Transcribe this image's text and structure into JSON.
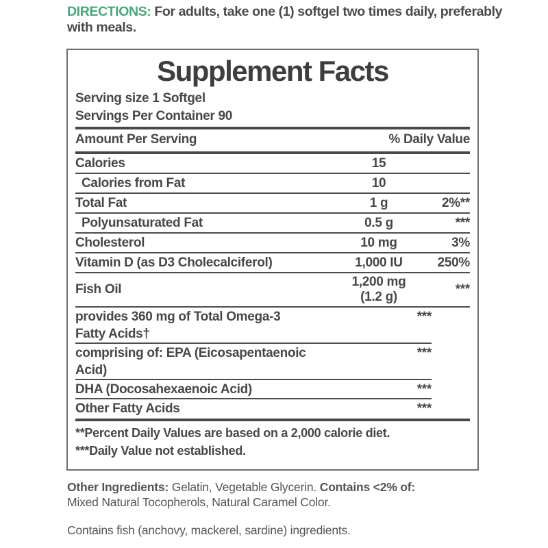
{
  "directions": {
    "label": "DIRECTIONS: ",
    "text": "For adults, take one (1) softgel two times daily, preferably with meals."
  },
  "panel": {
    "title": "Supplement Facts",
    "serving_size": "Serving size 1 Softgel",
    "servings_per_container": "Servings Per Container 90",
    "header": {
      "amount": "Amount Per Serving",
      "daily_value": "% Daily Value"
    },
    "rows": [
      {
        "name": "Calories",
        "amount": "15",
        "dv": ""
      },
      {
        "name": "Calories from Fat",
        "amount": "10",
        "dv": ""
      },
      {
        "name": "Total Fat",
        "amount": "1 g",
        "dv": "2%**"
      },
      {
        "name": "Polyunsaturated Fat",
        "amount": "0.5 g",
        "dv": "***"
      },
      {
        "name": "Cholesterol",
        "amount": "10 mg",
        "dv": "3%"
      },
      {
        "name": "Vitamin D (as D3 Cholecalciferol)",
        "amount": "1,000 IU",
        "dv": "250%"
      },
      {
        "name": "Fish Oil",
        "amount": "1,200 mg\n(1.2 g)",
        "dv": "***"
      },
      {
        "name": "provides 360 mg of Total Omega-3\nFatty Acids†",
        "amount": "",
        "dv": "***"
      },
      {
        "name": "comprising of: EPA (Eicosapentaenoic\nAcid)",
        "amount": "",
        "dv": "***"
      },
      {
        "name": "DHA (Docosahexaenoic Acid)",
        "amount": "",
        "dv": "***"
      },
      {
        "name": "Other Fatty Acids",
        "amount": "",
        "dv": "***"
      }
    ],
    "footnotes": [
      "**Percent Daily Values are based on a 2,000 calorie diet.",
      "***Daily Value not established."
    ]
  },
  "other_ingredients": {
    "label": "Other Ingredients: ",
    "text1": "Gelatin, Vegetable Glycerin. ",
    "contains_label": "Contains <2% of:",
    "text2": " Mixed Natural Tocopherols, Natural Caramel Color."
  },
  "allergen": "Contains fish (anchovy, mackerel, sardine) ingredients.",
  "colors": {
    "accent_green": "#49a87b",
    "text_dark": "#474747",
    "rule": "#4c4c4c",
    "border": "#6f6f6f"
  }
}
